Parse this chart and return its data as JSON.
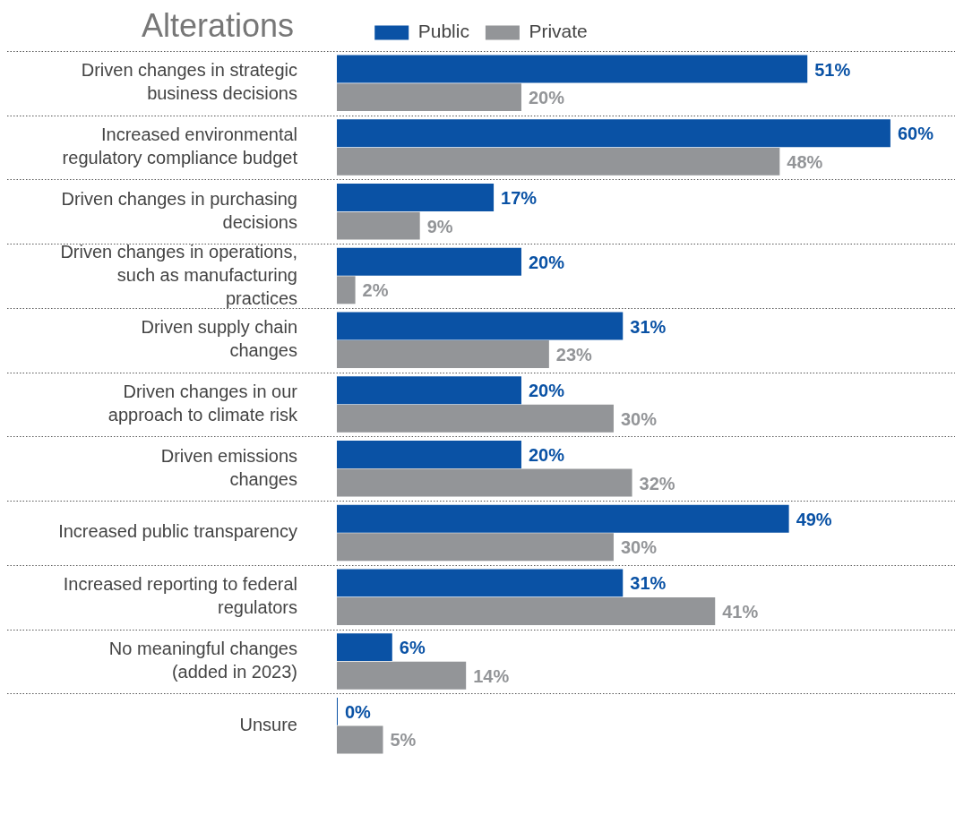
{
  "chart_data": {
    "type": "bar",
    "orientation": "horizontal",
    "title": "Alterations",
    "categories": [
      "Driven changes in strategic\nbusiness decisions",
      "Increased environmental\nregulatory compliance budget",
      "Driven changes in purchasing\ndecisions",
      "Driven changes in operations,\nsuch as manufacturing\npractices",
      "Driven supply chain\nchanges",
      "Driven changes in our\napproach to climate risk",
      "Driven emissions\nchanges",
      "Increased public transparency",
      "Increased reporting to federal\nregulators",
      "No meaningful changes\n(added in 2023)",
      "Unsure"
    ],
    "series": [
      {
        "name": "Public",
        "color": "#0a52a5",
        "values": [
          51,
          60,
          17,
          20,
          31,
          20,
          20,
          49,
          31,
          6,
          0
        ],
        "value_labels": [
          "51%",
          "60%",
          "17%",
          "20%",
          "31%",
          "20%",
          "20%",
          "49%",
          "31%",
          "6%",
          "0%"
        ]
      },
      {
        "name": "Private",
        "color": "#939598",
        "values": [
          20,
          48,
          9,
          2,
          23,
          30,
          32,
          30,
          41,
          14,
          5
        ],
        "value_labels": [
          "20%",
          "48%",
          "9%",
          "2%",
          "23%",
          "30%",
          "32%",
          "30%",
          "41%",
          "14%",
          "5%"
        ]
      }
    ],
    "xlim": [
      0,
      67
    ],
    "grid": "y",
    "legend": "top",
    "tick_labels": "y"
  }
}
